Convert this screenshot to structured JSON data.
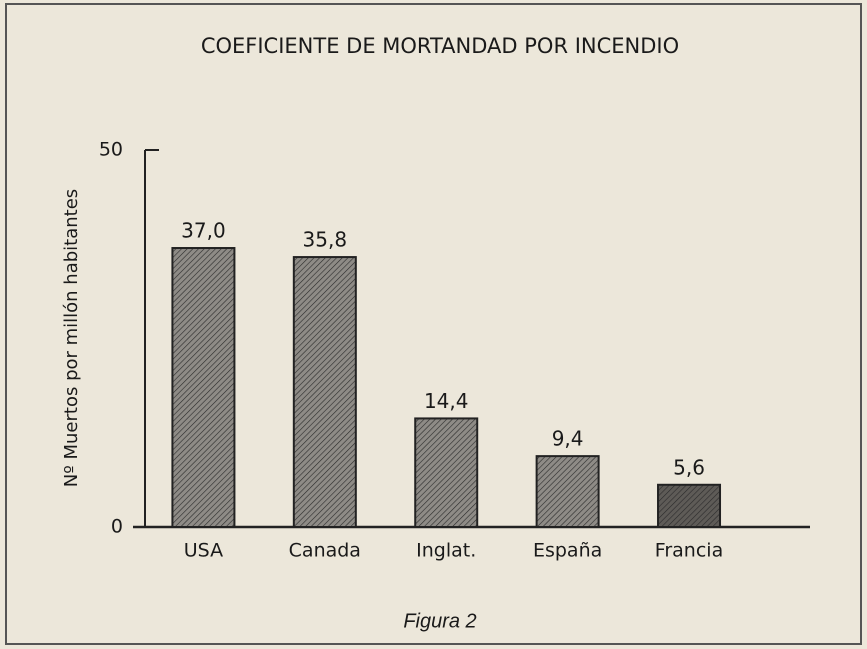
{
  "chart_data": {
    "type": "bar",
    "title": "COEFICIENTE DE MORTANDAD POR INCENDIO",
    "y_label": "Nº Muertos por millón habitantes",
    "categories": [
      "USA",
      "Canada",
      "Inglat.",
      "España",
      "Francia"
    ],
    "values": [
      37.0,
      35.8,
      14.4,
      9.4,
      5.6
    ],
    "value_labels": [
      "37,0",
      "35,8",
      "14,4",
      "9,4",
      "5,6"
    ],
    "colors": [
      "#8e8b86",
      "#8e8b86",
      "#8e8b86",
      "#8e8b86",
      "#5e5b57"
    ],
    "ylim": [
      0,
      50
    ],
    "yticks": [
      0,
      50
    ],
    "grid": false,
    "caption": "Figura 2"
  }
}
